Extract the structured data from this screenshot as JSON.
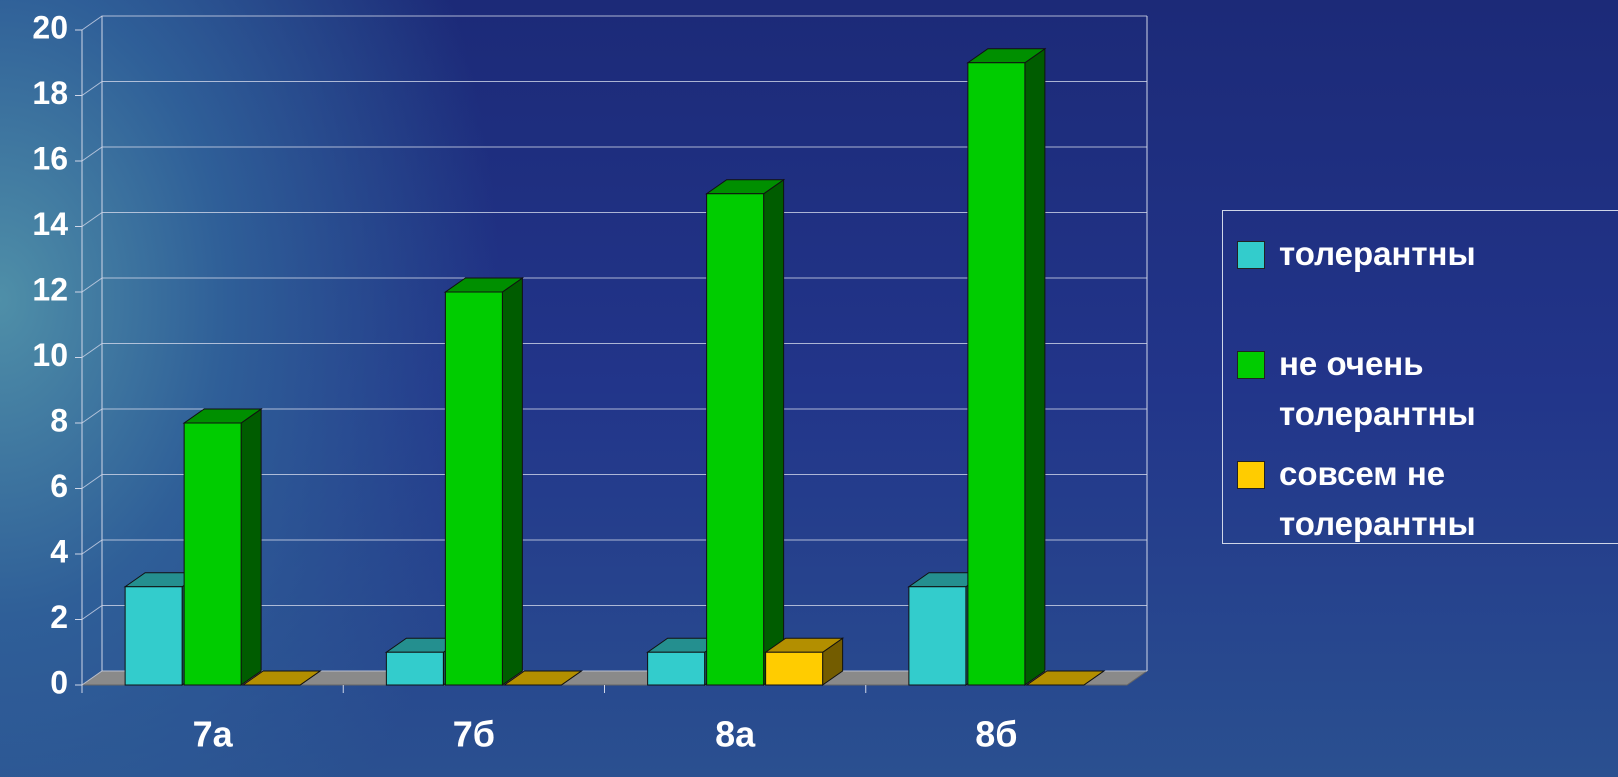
{
  "chart_data": {
    "type": "bar3d",
    "categories": [
      "7а",
      "7б",
      "8а",
      "8б"
    ],
    "series": [
      {
        "name": "толерантны",
        "color": "#33cccc",
        "values": [
          3,
          1,
          1,
          3
        ]
      },
      {
        "name": "не очень толерантны",
        "color": "#00cc00",
        "values": [
          8,
          12,
          15,
          19
        ]
      },
      {
        "name": "совсем не толерантны",
        "color": "#ffcc00",
        "values": [
          0,
          0,
          1,
          0
        ]
      }
    ],
    "ylim": [
      0,
      20
    ],
    "yticks": [
      0,
      2,
      4,
      6,
      8,
      10,
      12,
      14,
      16,
      18,
      20
    ],
    "grid": true,
    "legend": "right"
  }
}
